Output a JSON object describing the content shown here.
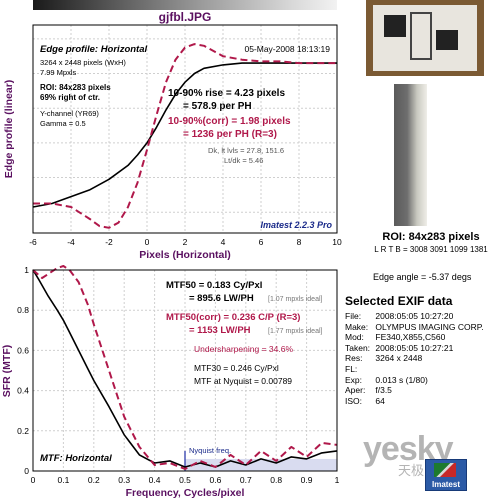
{
  "file_name": "gjfbl.JPG",
  "colors": {
    "measured": "#000000",
    "corrected": "#b0184a",
    "accent": "#5a1060",
    "exif_title": "#000000"
  },
  "edge_panel": {
    "title": "Edge profile: Horizontal",
    "date": "05-May-2008 18:13:19",
    "info": [
      "3264 x 2448 pixels (WxH)",
      "7.99 Mpxls"
    ],
    "roi": [
      "ROI: 84x283 pixels",
      "69% right of ctr."
    ],
    "channel": [
      "Y-channel  (YR69)",
      "Gamma = 0.5"
    ],
    "rise": [
      "10-90% rise = 4.23 pixels",
      "= 578.9 per PH"
    ],
    "rise_corr": [
      "10-90%(corr) = 1.98 pixels",
      "= 1236 per PH  (R=3)"
    ],
    "dk": [
      "Dk, lt lvls = 27.8, 151.6",
      "Lt/dk = 5.46"
    ],
    "brand": "Imatest 2.2.3 Pro",
    "ylabel": "Edge profile (linear)",
    "xlabel": "Pixels (Horizontal)"
  },
  "mtf_panel": {
    "mtf50": [
      "MTF50 = 0.183 Cy/Pxl",
      "= 895.6 LW/PH"
    ],
    "mtf50_ideal": "[1.07 mpxls ideal]",
    "mtf50_corr": [
      "MTF50(corr) = 0.236 C/P  (R=3)",
      "= 1153 LW/PH"
    ],
    "mtf50_corr_ideal": "[1.77 mpxls ideal]",
    "undersharpening": "Undersharpening = 34.6%",
    "mtf30": "MTF30 = 0.246 Cy/Pxl",
    "nyquist_val": "MTF at Nyquist = 0.00789",
    "nyquist_label": "Nyquist freq.",
    "title": "MTF: Horizontal",
    "ylabel": "SFR (MTF)",
    "xlabel": "Frequency, Cycles/pixel"
  },
  "roi_box": {
    "title": "ROI: 84x283 pixels",
    "sub": "L R T B = 3008 3091  1099 1381"
  },
  "edge_angle": "Edge angle = -5.37 degs",
  "exif": {
    "title": "Selected EXIF data",
    "rows": [
      {
        "label": "File:",
        "value": "2008:05:05 10:27:20"
      },
      {
        "label": "Make:",
        "value": "OLYMPUS IMAGING CORP."
      },
      {
        "label": "Mod:",
        "value": "FE340,X855,C560"
      },
      {
        "label": "Taken:",
        "value": "2008:05:05 10:27:21"
      },
      {
        "label": "Res:",
        "value": "3264 x 2448"
      },
      {
        "label": "FL:",
        "value": ""
      },
      {
        "label": "Exp:",
        "value": "0.013 s  (1/80)"
      },
      {
        "label": "Aper:",
        "value": "f/3.5"
      },
      {
        "label": "ISO:",
        "value": "64"
      }
    ]
  },
  "watermark": {
    "main": "yesky",
    "sub": "天极网",
    "logo": "Imatest"
  },
  "chart_data": [
    {
      "type": "line",
      "title": "Edge profile: Horizontal",
      "xlabel": "Pixels (Horizontal)",
      "ylabel": "Edge profile (linear)",
      "xlim": [
        -6,
        10
      ],
      "xticks": [
        -6,
        -4,
        -2,
        0,
        2,
        4,
        6,
        8,
        10
      ],
      "grid": true,
      "series": [
        {
          "style": "solid",
          "x": [
            -6,
            -5,
            -4,
            -3,
            -2,
            -1,
            -0.5,
            0,
            0.5,
            1,
            1.5,
            2,
            2.5,
            3,
            4,
            5,
            6,
            7,
            8,
            9,
            10
          ],
          "y": [
            0.03,
            0.05,
            0.09,
            0.13,
            0.19,
            0.27,
            0.33,
            0.4,
            0.49,
            0.59,
            0.68,
            0.75,
            0.8,
            0.83,
            0.85,
            0.86,
            0.86,
            0.86,
            0.86,
            0.86,
            0.86
          ]
        },
        {
          "style": "dashed",
          "x": [
            -6,
            -5,
            -4,
            -3,
            -2.5,
            -2,
            -1.5,
            -1,
            -0.5,
            0,
            0.5,
            1,
            1.5,
            2,
            2.5,
            3,
            3.5,
            4,
            5,
            6,
            7,
            8,
            9,
            10
          ],
          "y": [
            0.05,
            0.05,
            0.03,
            -0.04,
            -0.08,
            -0.09,
            -0.06,
            0.03,
            0.17,
            0.36,
            0.56,
            0.75,
            0.88,
            0.95,
            0.97,
            0.96,
            0.93,
            0.9,
            0.88,
            0.87,
            0.87,
            0.86,
            0.86,
            0.86
          ]
        }
      ]
    },
    {
      "type": "line",
      "title": "MTF: Horizontal",
      "xlabel": "Frequency, Cycles/pixel",
      "ylabel": "SFR (MTF)",
      "xlim": [
        0,
        1
      ],
      "ylim": [
        0,
        1
      ],
      "xticks": [
        0,
        0.1,
        0.2,
        0.3,
        0.4,
        0.5,
        0.6,
        0.7,
        0.8,
        0.9,
        1
      ],
      "yticks": [
        0,
        0.2,
        0.4,
        0.6,
        0.8,
        1
      ],
      "nyquist": 0.5,
      "grid": true,
      "series": [
        {
          "style": "solid",
          "x": [
            0,
            0.02,
            0.05,
            0.08,
            0.1,
            0.12,
            0.15,
            0.18,
            0.2,
            0.25,
            0.3,
            0.35,
            0.4,
            0.45,
            0.5,
            0.55,
            0.6,
            0.65,
            0.7,
            0.75,
            0.8,
            0.85,
            0.9,
            0.95,
            1.0
          ],
          "y": [
            1.0,
            0.95,
            0.87,
            0.8,
            0.75,
            0.69,
            0.6,
            0.51,
            0.45,
            0.32,
            0.18,
            0.08,
            0.04,
            0.05,
            0.02,
            0.04,
            0.02,
            0.05,
            0.03,
            0.06,
            0.04,
            0.07,
            0.06,
            0.09,
            0.1
          ]
        },
        {
          "style": "dashed",
          "x": [
            0,
            0.03,
            0.05,
            0.08,
            0.1,
            0.12,
            0.15,
            0.18,
            0.2,
            0.25,
            0.3,
            0.35,
            0.4,
            0.45,
            0.5,
            0.55,
            0.6,
            0.65,
            0.7,
            0.75,
            0.8,
            0.85,
            0.9,
            0.95,
            1.0
          ],
          "y": [
            1.0,
            0.96,
            0.98,
            1.01,
            1.02,
            1.0,
            0.94,
            0.83,
            0.73,
            0.5,
            0.27,
            0.12,
            0.03,
            0.04,
            0.01,
            0.05,
            0.02,
            0.08,
            0.03,
            0.1,
            0.05,
            0.12,
            0.07,
            0.14,
            0.13
          ]
        }
      ]
    }
  ]
}
